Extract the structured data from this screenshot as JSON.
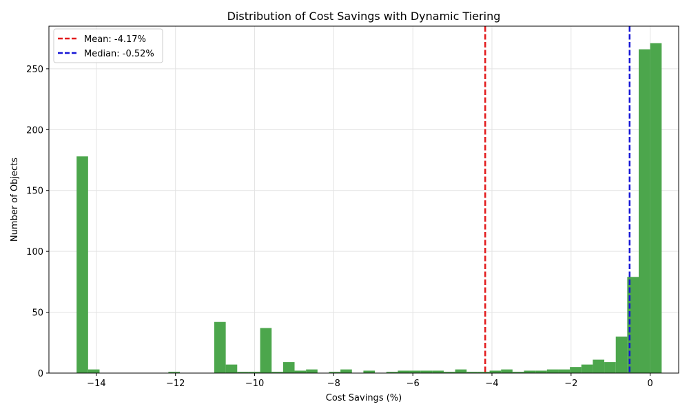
{
  "chart_data": {
    "type": "bar",
    "title": "Distribution of Cost Savings with Dynamic Tiering",
    "xlabel": "Cost Savings (%)",
    "ylabel": "Number of Objects",
    "xlim": [
      -15.2,
      0.72
    ],
    "ylim": [
      0,
      285
    ],
    "xticks": [
      -14,
      -12,
      -10,
      -8,
      -6,
      -4,
      -2,
      0
    ],
    "xtick_labels": [
      "−14",
      "−12",
      "−10",
      "−8",
      "−6",
      "−4",
      "−2",
      "0"
    ],
    "yticks": [
      0,
      50,
      100,
      150,
      200,
      250
    ],
    "yticks_labels": [
      "0",
      "50",
      "100",
      "150",
      "200",
      "250"
    ],
    "grid": true,
    "bar_color": "#4ca64c",
    "bins": {
      "start": -14.5,
      "width": 0.29,
      "counts": [
        178,
        3,
        0,
        0,
        0,
        0,
        0,
        0,
        1,
        0,
        0,
        0,
        42,
        7,
        1,
        1,
        37,
        1,
        9,
        2,
        3,
        0,
        1,
        3,
        0,
        2,
        0,
        1,
        2,
        2,
        2,
        2,
        1,
        3,
        1,
        1,
        2,
        3,
        1,
        2,
        2,
        3,
        3,
        5,
        7,
        11,
        9,
        30,
        79,
        266,
        271
      ]
    },
    "reference_lines": [
      {
        "name": "Mean: -4.17%",
        "value": -4.17,
        "color": "#e31a1c"
      },
      {
        "name": "Median: -0.52%",
        "value": -0.52,
        "color": "#1515d6"
      }
    ],
    "legend_position": "top-left"
  }
}
